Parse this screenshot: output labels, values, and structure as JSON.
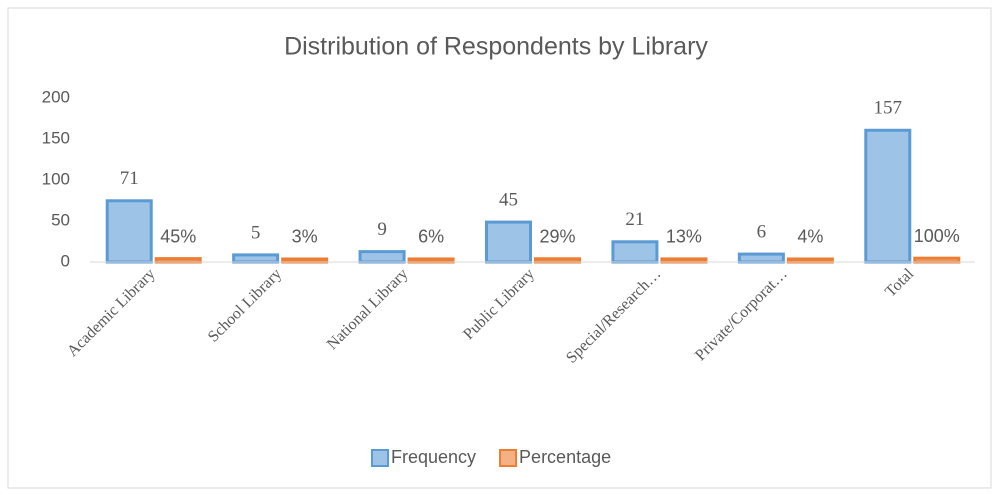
{
  "chart_data": {
    "type": "bar",
    "title": "Distribution of Respondents by Library",
    "categories": [
      "Academic Library",
      "School Library",
      "National Library",
      "Public Library",
      "Special/Research…",
      "Private/Corporat…",
      "Total"
    ],
    "series": [
      {
        "name": "Frequency",
        "color": "#5b9bd5",
        "values": [
          71,
          5,
          9,
          45,
          21,
          6,
          157
        ]
      },
      {
        "name": "Percentage",
        "color": "#ed7d31",
        "values": [
          0.45,
          0.03,
          0.06,
          0.29,
          0.13,
          0.04,
          1.0
        ],
        "value_labels": [
          "45%",
          "3%",
          "6%",
          "29%",
          "13%",
          "4%",
          "100%"
        ]
      }
    ],
    "ylim": [
      0,
      200
    ],
    "yticks": [
      0,
      50,
      100,
      150,
      200
    ],
    "grid": false,
    "legend": "bottom"
  }
}
